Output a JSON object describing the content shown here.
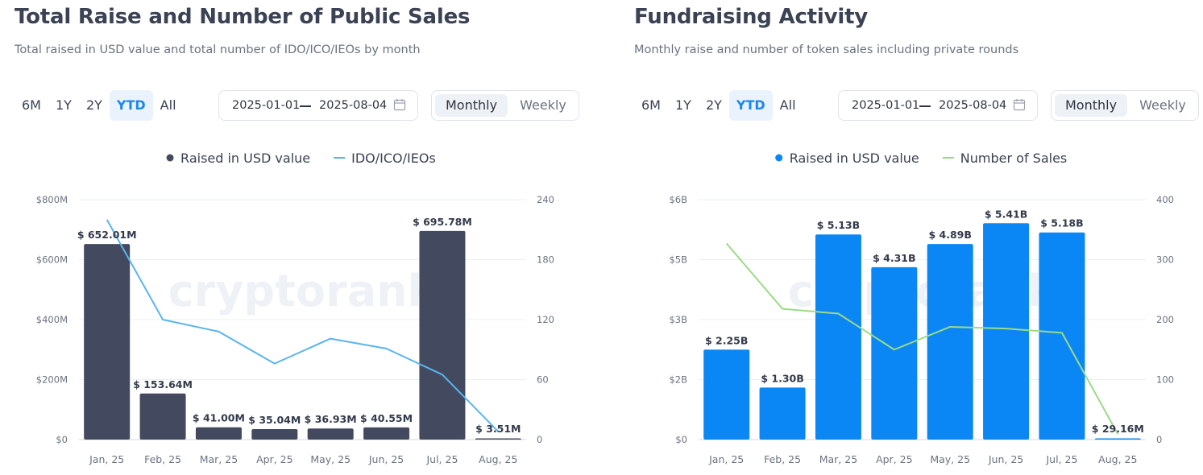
{
  "panels": [
    {
      "title": "Total Raise and Number of Public Sales",
      "subtitle": "Total raised in USD value and total number of IDO/ICO/IEOs by month",
      "ranges": [
        "6M",
        "1Y",
        "2Y",
        "YTD",
        "All"
      ],
      "active_range": "YTD",
      "date_from": "2025-01-01",
      "date_to": "2025-08-04",
      "toggle": {
        "monthly": "Monthly",
        "weekly": "Weekly",
        "active": "Monthly"
      }
    },
    {
      "title": "Fundraising Activity",
      "subtitle": "Monthly raise and number of token sales including private rounds",
      "ranges": [
        "6M",
        "1Y",
        "2Y",
        "YTD",
        "All"
      ],
      "active_range": "YTD",
      "date_from": "2025-01-01",
      "date_to": "2025-08-04",
      "toggle": {
        "monthly": "Monthly",
        "weekly": "Weekly",
        "active": "Monthly"
      }
    }
  ],
  "chart_data": [
    {
      "type": "bar",
      "categories": [
        "Jan, 25",
        "Feb, 25",
        "Mar, 25",
        "Apr, 25",
        "May, 25",
        "Jun, 25",
        "Jul, 25",
        "Aug, 25"
      ],
      "series": [
        {
          "name": "Raised in USD value",
          "kind": "bar",
          "axis": "left",
          "color": "#434a5f",
          "values": [
            652.01,
            153.64,
            41.0,
            35.04,
            36.93,
            40.55,
            695.78,
            3.51
          ],
          "labels": [
            "$ 652.01M",
            "$ 153.64M",
            "$ 41.00M",
            "$ 35.04M",
            "$ 36.93M",
            "$ 40.55M",
            "$ 695.78M",
            "$ 3.51M"
          ]
        },
        {
          "name": "IDO/ICO/IEOs",
          "kind": "line",
          "axis": "right",
          "color": "#5ab4ee",
          "values": [
            220,
            120,
            108,
            76,
            101,
            91,
            65,
            8
          ]
        }
      ],
      "left_axis": {
        "min": 0,
        "max": 800,
        "ticks": [
          0,
          200,
          400,
          600,
          800
        ],
        "tick_labels": [
          "$0",
          "$200M",
          "$400M",
          "$600M",
          "$800M"
        ]
      },
      "right_axis": {
        "min": 0,
        "max": 240,
        "ticks": [
          0,
          60,
          120,
          180,
          240
        ],
        "tick_labels": [
          "0",
          "60",
          "120",
          "180",
          "240"
        ]
      },
      "legend_position": "top-center",
      "grid": true,
      "watermark": "cryptorank"
    },
    {
      "type": "bar",
      "categories": [
        "Jan, 25",
        "Feb, 25",
        "Mar, 25",
        "Apr, 25",
        "May, 25",
        "Jun, 25",
        "Jul, 25",
        "Aug, 25"
      ],
      "series": [
        {
          "name": "Raised in USD value",
          "kind": "bar",
          "axis": "left",
          "color": "#0b87f5",
          "values": [
            2.25,
            1.3,
            5.13,
            4.31,
            4.89,
            5.41,
            5.18,
            0.02916
          ],
          "labels": [
            "$ 2.25B",
            "$ 1.30B",
            "$ 5.13B",
            "$ 4.31B",
            "$ 4.89B",
            "$ 5.41B",
            "$ 5.18B",
            "$ 29.16M"
          ]
        },
        {
          "name": "Number of Sales",
          "kind": "line",
          "axis": "right",
          "color": "#9bdb86",
          "values": [
            327,
            218,
            210,
            150,
            188,
            185,
            178,
            9
          ]
        }
      ],
      "left_axis": {
        "min": 0,
        "max": 6,
        "ticks": [
          0,
          1.5,
          3,
          4.5,
          6
        ],
        "tick_labels": [
          "$0",
          "$2B",
          "$3B",
          "$5B",
          "$6B"
        ]
      },
      "right_axis": {
        "min": 0,
        "max": 400,
        "ticks": [
          0,
          100,
          200,
          300,
          400
        ],
        "tick_labels": [
          "0",
          "100",
          "200",
          "300",
          "400"
        ]
      },
      "legend_position": "top-center",
      "grid": true,
      "watermark": "cryptorank"
    }
  ]
}
